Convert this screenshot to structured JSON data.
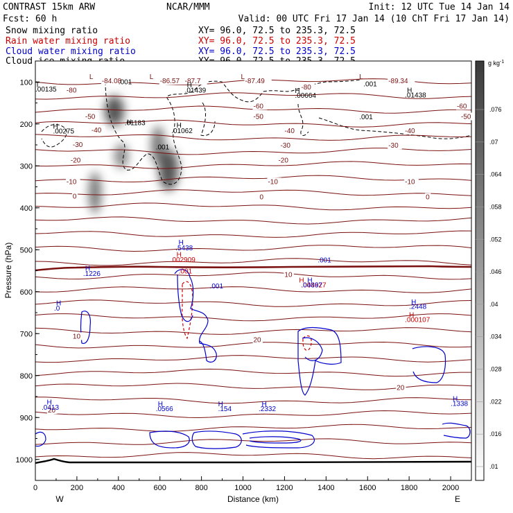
{
  "header": {
    "left1": "CONTRAST 15km ARW",
    "center1": "NCAR/MMM",
    "right1": "Init: 12 UTC Tue 14 Jan 14",
    "left2": "Fcst:   60 h",
    "right2": "Valid: 00 UTC Fri 17 Jan 14 (10 ChT Fri 17 Jan 14)"
  },
  "fields": [
    {
      "name": "Snow mixing ratio",
      "xy": "XY=  96.0, 72.5 to 235.3, 72.5",
      "color": "#000000"
    },
    {
      "name": "Rain water mixing ratio",
      "xy": "XY=  96.0, 72.5 to 235.3, 72.5",
      "color": "#cc0000"
    },
    {
      "name": "Cloud water mixing ratio",
      "xy": "XY=  96.0, 72.5 to 235.3, 72.5",
      "color": "#0000cc"
    },
    {
      "name": "Cloud ice mixing ratio",
      "xy": "XY=  96.0, 72.5 to 235.3, 72.5",
      "color": "#000000"
    }
  ],
  "colors": {
    "temperature": "#7a1010",
    "rain": "#cc0000",
    "cloud_water": "#0000cc",
    "cloud_ice": "#000000",
    "snow_shading": "#555555"
  },
  "chart_data": {
    "type": "cross-section",
    "xlabel": "Distance (km)",
    "ylabel": "Pressure (hPa)",
    "xlim": [
      0,
      2100
    ],
    "ylim": [
      1050,
      50
    ],
    "xticks": [
      "0",
      "200",
      "400",
      "600",
      "800",
      "1000",
      "1200",
      "1400",
      "1600",
      "1800",
      "2000"
    ],
    "yticks": [
      "100",
      "200",
      "300",
      "400",
      "500",
      "600",
      "700",
      "800",
      "900",
      "1000"
    ],
    "endpoints": {
      "left": "W",
      "right": "E"
    },
    "temperature_contours": [
      {
        "label": "-80",
        "p": 125,
        "label_x": 150
      },
      {
        "label": "-60",
        "p": 163,
        "label_x": 1050
      },
      {
        "label": "-50",
        "p": 188,
        "label_x": 240
      },
      {
        "label": "-40",
        "p": 220,
        "label_x": 270
      },
      {
        "label": "-30",
        "p": 255,
        "label_x": 180
      },
      {
        "label": "-20",
        "p": 292,
        "label_x": 170
      },
      {
        "label": "-10",
        "p": 343,
        "label_x": 150
      },
      {
        "label": "0",
        "p": 378,
        "label_x": 180
      },
      {
        "label": "10",
        "p": 565,
        "label_x": 1200
      },
      {
        "label": "20",
        "p": 720,
        "label_x": 1050
      }
    ],
    "extra_contour_labels": [
      {
        "text": "-84.08",
        "x": 320,
        "p": 103
      },
      {
        "text": "-86.57",
        "x": 600,
        "p": 103
      },
      {
        "text": "-87.7",
        "x": 720,
        "p": 103
      },
      {
        "text": "-87.49",
        "x": 1010,
        "p": 103
      },
      {
        "text": "-89.34",
        "x": 1700,
        "p": 103
      },
      {
        "text": "-80",
        "x": 1280,
        "p": 118
      },
      {
        "text": "-60",
        "x": 2030,
        "p": 163
      },
      {
        "text": "-50",
        "x": 2050,
        "p": 188
      },
      {
        "text": "-50",
        "x": 1050,
        "p": 188
      },
      {
        "text": "-40",
        "x": 1200,
        "p": 222
      },
      {
        "text": "-40",
        "x": 1780,
        "p": 222
      },
      {
        "text": "-30",
        "x": 1180,
        "p": 257
      },
      {
        "text": "-30",
        "x": 1700,
        "p": 257
      },
      {
        "text": "-20",
        "x": 1170,
        "p": 292
      },
      {
        "text": "-10",
        "x": 1120,
        "p": 343
      },
      {
        "text": "-10",
        "x": 1780,
        "p": 343
      },
      {
        "text": "0",
        "x": 1080,
        "p": 380
      },
      {
        "text": "0",
        "x": 1880,
        "p": 380
      },
      {
        "text": "10",
        "x": 180,
        "p": 712
      },
      {
        "text": "20",
        "x": 1740,
        "p": 834
      },
      {
        "text": "20",
        "x": 60,
        "p": 888
      }
    ],
    "extrema_labels": [
      {
        "text": "L",
        "x": 260,
        "p": 93,
        "color": "#7a1010"
      },
      {
        "text": "L",
        "x": 550,
        "p": 93,
        "color": "#7a1010"
      },
      {
        "text": "L",
        "x": 990,
        "p": 93,
        "color": "#7a1010"
      },
      {
        "text": "L",
        "x": 1560,
        "p": 93,
        "color": "#7a1010"
      },
      {
        "text": ".001",
        "x": 400,
        "p": 105,
        "color": "#000000"
      },
      {
        "text": ".001",
        "x": 1580,
        "p": 110,
        "color": "#000000"
      },
      {
        "text": "T",
        "x": 0,
        "p": 112,
        "color": "#000000"
      },
      {
        "text": ".00135",
        "x": 0,
        "p": 123,
        "color": "#000000"
      },
      {
        "text": "H",
        "x": 730,
        "p": 113,
        "color": "#000000"
      },
      {
        "text": ".01439",
        "x": 720,
        "p": 125,
        "color": "#000000"
      },
      {
        "text": "H",
        "x": 1250,
        "p": 126,
        "color": "#000000"
      },
      {
        "text": ".00664",
        "x": 1250,
        "p": 138,
        "color": "#000000"
      },
      {
        "text": "H",
        "x": 1790,
        "p": 125,
        "color": "#000000"
      },
      {
        "text": ".01438",
        "x": 1780,
        "p": 137,
        "color": "#000000"
      },
      {
        "text": ".001",
        "x": 1560,
        "p": 189,
        "color": "#000000"
      },
      {
        "text": "H",
        "x": 85,
        "p": 211,
        "color": "#000000"
      },
      {
        "text": ".00275",
        "x": 85,
        "p": 223,
        "color": "#000000"
      },
      {
        "text": "H",
        "x": 440,
        "p": 201,
        "color": "#000000"
      },
      {
        "text": ".01183",
        "x": 430,
        "p": 203,
        "color": "#000000"
      },
      {
        "text": "H",
        "x": 680,
        "p": 209,
        "color": "#000000"
      },
      {
        "text": ".01062",
        "x": 655,
        "p": 222,
        "color": "#000000"
      },
      {
        "text": ".001",
        "x": 580,
        "p": 261,
        "color": "#000000"
      },
      {
        "text": "H",
        "x": 690,
        "p": 488,
        "color": "#0000cc"
      },
      {
        "text": ".5438",
        "x": 675,
        "p": 501,
        "color": "#0000cc"
      },
      {
        "text": "H",
        "x": 680,
        "p": 517,
        "color": "#cc0000"
      },
      {
        "text": ".002909",
        "x": 650,
        "p": 529,
        "color": "#cc0000"
      },
      {
        "text": ".001",
        "x": 690,
        "p": 557,
        "color": "#cc0000"
      },
      {
        "text": "H",
        "x": 240,
        "p": 550,
        "color": "#0000cc"
      },
      {
        "text": ".1226",
        "x": 230,
        "p": 562,
        "color": "#0000cc"
      },
      {
        "text": ".001",
        "x": 840,
        "p": 592,
        "color": "#0000cc"
      },
      {
        "text": "H",
        "x": 100,
        "p": 633,
        "color": "#0000cc"
      },
      {
        "text": ".0",
        "x": 90,
        "p": 645,
        "color": "#0000cc"
      },
      {
        "text": ".001",
        "x": 1360,
        "p": 530,
        "color": "#0000cc"
      },
      {
        "text": "H",
        "x": 1270,
        "p": 578,
        "color": "#cc0000"
      },
      {
        "text": "H",
        "x": 1310,
        "p": 578,
        "color": "#0000cc"
      },
      {
        "text": ".004627",
        "x": 1280,
        "p": 590,
        "color": "#cc0000"
      },
      {
        "text": ".04897",
        "x": 1280,
        "p": 590,
        "color": "#0000cc"
      },
      {
        "text": "H",
        "x": 1810,
        "p": 630,
        "color": "#0000cc"
      },
      {
        "text": ".2448",
        "x": 1800,
        "p": 641,
        "color": "#0000cc"
      },
      {
        "text": "H",
        "x": 1800,
        "p": 661,
        "color": "#cc0000"
      },
      {
        "text": ".000107",
        "x": 1780,
        "p": 672,
        "color": "#cc0000"
      },
      {
        "text": "H",
        "x": 55,
        "p": 869,
        "color": "#0000cc"
      },
      {
        "text": ".0413",
        "x": 30,
        "p": 881,
        "color": "#0000cc"
      },
      {
        "text": "H",
        "x": 590,
        "p": 873,
        "color": "#0000cc"
      },
      {
        "text": ".0566",
        "x": 580,
        "p": 885,
        "color": "#0000cc"
      },
      {
        "text": "H",
        "x": 880,
        "p": 873,
        "color": "#0000cc"
      },
      {
        "text": ".154",
        "x": 880,
        "p": 885,
        "color": "#0000cc"
      },
      {
        "text": "H",
        "x": 1090,
        "p": 873,
        "color": "#0000cc"
      },
      {
        "text": ".2332",
        "x": 1075,
        "p": 885,
        "color": "#0000cc"
      },
      {
        "text": "H",
        "x": 2010,
        "p": 861,
        "color": "#0000cc"
      },
      {
        "text": ".1338",
        "x": 2000,
        "p": 872,
        "color": "#0000cc"
      }
    ],
    "colorbar": {
      "unit": "g kg",
      "unit_superscript": "-1",
      "levels": [
        ".01",
        ".016",
        ".022",
        ".028",
        ".034",
        ".04",
        ".046",
        ".052",
        ".058",
        ".064",
        ".07",
        ".076"
      ]
    }
  }
}
